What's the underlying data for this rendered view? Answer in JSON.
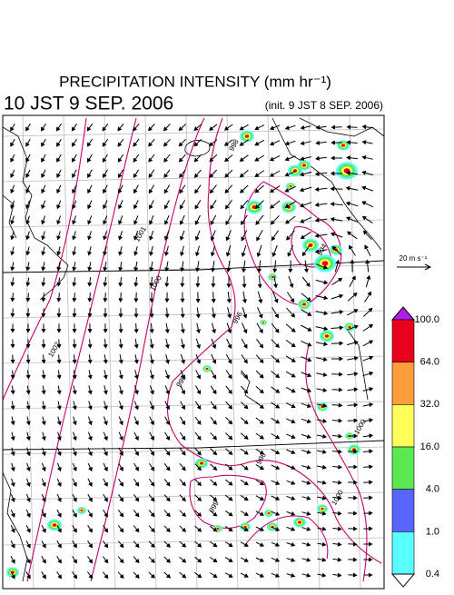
{
  "title": "PRECIPITATION INTENSITY (mm hr⁻¹)",
  "valid_time": "10 JST 9 SEP. 2006",
  "init_time": "(init. 9 JST 8 SEP. 2006)",
  "reference_vector": "20 m s⁻¹",
  "colorbar": {
    "labels": [
      "100.0",
      "64.0",
      "32.0",
      "16.0",
      "4.0",
      "1.0",
      "0.4"
    ],
    "colors": [
      "#b01ce8",
      "#e8001c",
      "#ff9c3c",
      "#ffff5a",
      "#5ae850",
      "#5a64ff",
      "#5affff",
      "#ffffff"
    ]
  },
  "contour_labels": [
    "1002",
    "1001",
    "1000",
    "998",
    "996",
    "998",
    "994",
    "998",
    "999",
    "1000",
    "1000"
  ]
}
